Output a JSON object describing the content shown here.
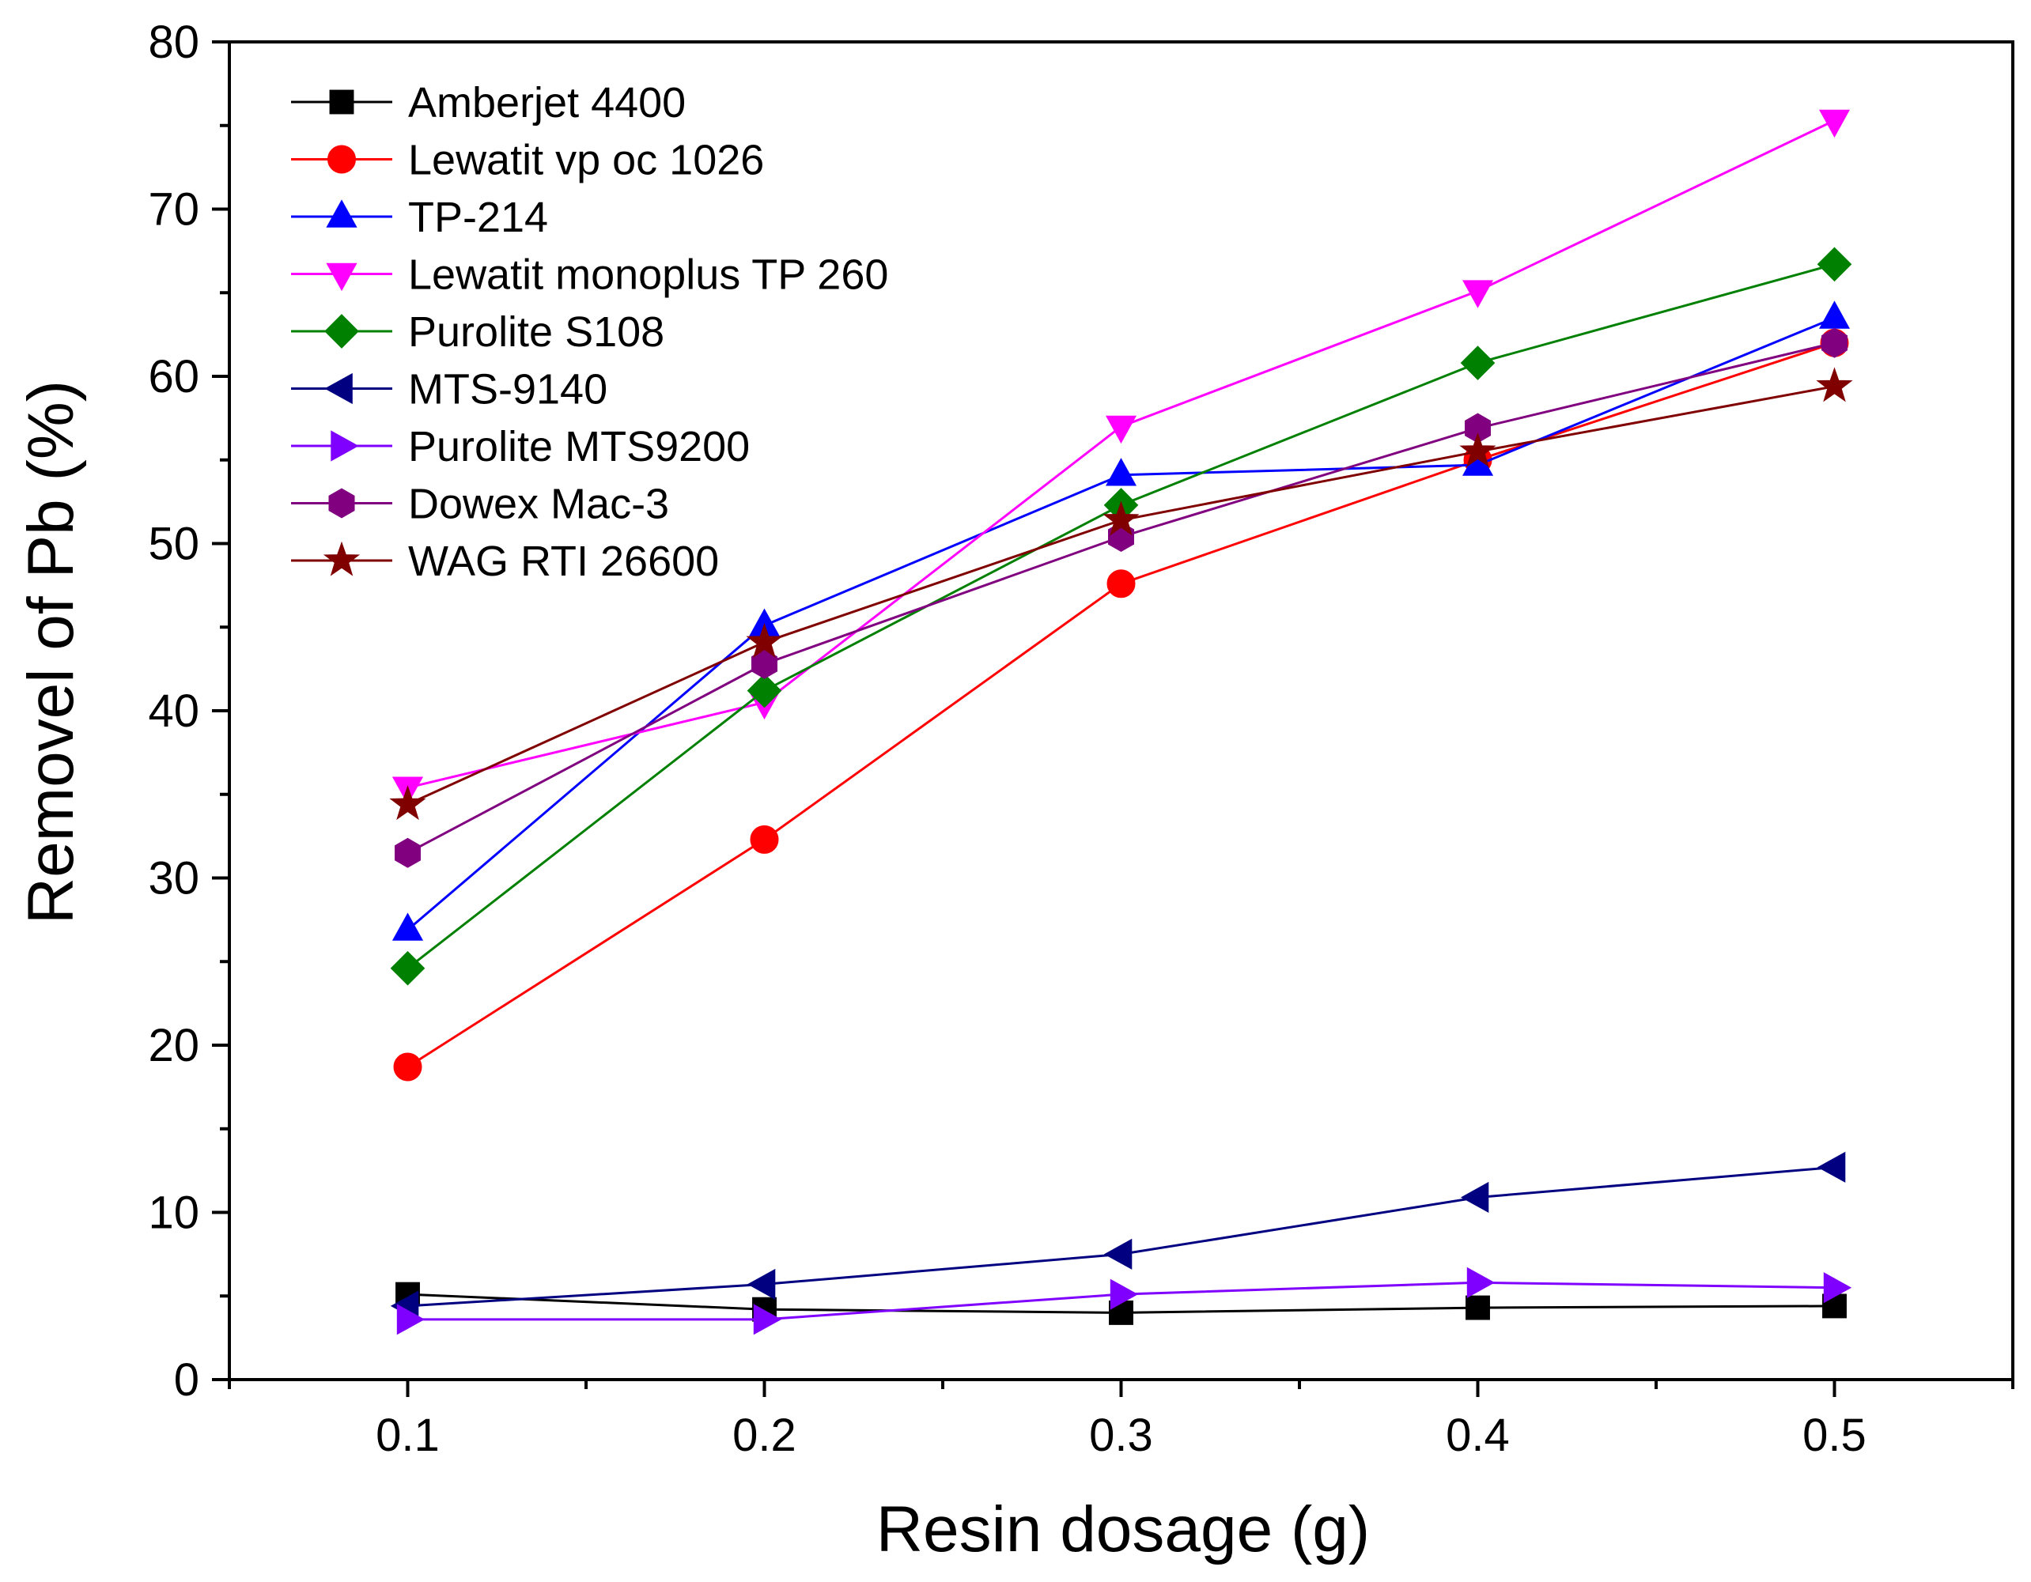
{
  "chart_data": {
    "type": "line",
    "title": "",
    "xlabel": "Resin dosage (g)",
    "ylabel": "Removel of Pb (%)",
    "xlim": [
      0.05,
      0.55
    ],
    "ylim": [
      0,
      80
    ],
    "x": [
      0.1,
      0.2,
      0.3,
      0.4,
      0.5
    ],
    "x_ticks": [
      "0.1",
      "0.2",
      "0.3",
      "0.4",
      "0.5"
    ],
    "y_ticks": [
      "0",
      "10",
      "20",
      "30",
      "40",
      "50",
      "60",
      "70",
      "80"
    ],
    "legend_position": "top-left",
    "grid": false,
    "series": [
      {
        "name": "Amberjet 4400",
        "color": "#000000",
        "marker": "square",
        "values": [
          5.1,
          4.2,
          4.0,
          4.3,
          4.4
        ]
      },
      {
        "name": "Lewatit vp oc 1026",
        "color": "#ff0000",
        "marker": "circle",
        "values": [
          18.7,
          32.3,
          47.6,
          55.0,
          62.0
        ]
      },
      {
        "name": "TP-214",
        "color": "#0000ff",
        "marker": "triangle-up",
        "values": [
          26.9,
          45.1,
          54.1,
          54.7,
          63.5
        ]
      },
      {
        "name": "Lewatit monoplus TP 260",
        "color": "#ff00ff",
        "marker": "triangle-down",
        "values": [
          35.4,
          40.5,
          57.0,
          65.1,
          75.3
        ]
      },
      {
        "name": "Purolite S108",
        "color": "#008000",
        "marker": "diamond",
        "values": [
          24.6,
          41.2,
          52.3,
          60.8,
          66.7
        ]
      },
      {
        "name": "MTS-9140",
        "color": "#000080",
        "marker": "triangle-left",
        "values": [
          4.4,
          5.7,
          7.5,
          10.9,
          12.7
        ]
      },
      {
        "name": "Purolite MTS9200",
        "color": "#8000ff",
        "marker": "triangle-right",
        "values": [
          3.6,
          3.6,
          5.1,
          5.8,
          5.5
        ]
      },
      {
        "name": "Dowex Mac-3",
        "color": "#800080",
        "marker": "hexagon",
        "values": [
          31.5,
          42.8,
          50.4,
          56.9,
          62.0
        ]
      },
      {
        "name": "WAG RTI 26600",
        "color": "#800000",
        "marker": "star",
        "values": [
          34.4,
          44.1,
          51.4,
          55.5,
          59.4
        ]
      }
    ]
  }
}
